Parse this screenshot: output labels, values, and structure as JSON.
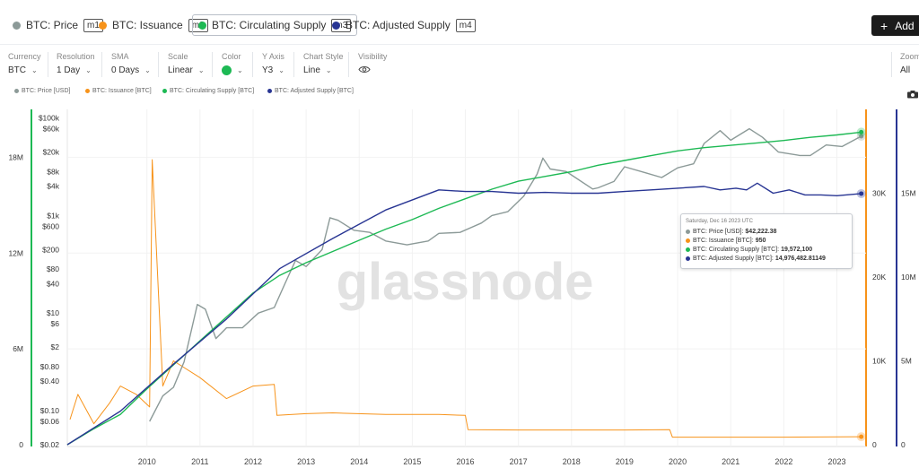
{
  "metrics": [
    {
      "name": "BTC: Price",
      "tag": "m1",
      "color": "#8c9a98"
    },
    {
      "name": "BTC: Issuance",
      "tag": "m2",
      "color": "#f7931a"
    },
    {
      "name": "BTC: Circulating Supply",
      "tag": "m3",
      "color": "#1db954"
    },
    {
      "name": "BTC: Adjusted Supply",
      "tag": "m4",
      "color": "#283593"
    }
  ],
  "add_label": "Add",
  "controls": {
    "currency": {
      "label": "Currency",
      "value": "BTC"
    },
    "resolution": {
      "label": "Resolution",
      "value": "1 Day"
    },
    "sma": {
      "label": "SMA",
      "value": "0 Days"
    },
    "scale": {
      "label": "Scale",
      "value": "Linear"
    },
    "color": {
      "label": "Color",
      "value": "#1db954"
    },
    "yaxis": {
      "label": "Y Axis",
      "value": "Y3"
    },
    "chart_style": {
      "label": "Chart Style",
      "value": "Line"
    },
    "visibility": {
      "label": "Visibility"
    },
    "zoom": {
      "label": "Zoom",
      "value": "All"
    }
  },
  "legend": [
    {
      "name": "BTC: Price [USD]",
      "color": "#8c9a98"
    },
    {
      "name": "BTC: Issuance [BTC]",
      "color": "#f7931a"
    },
    {
      "name": "BTC: Circulating Supply [BTC]",
      "color": "#1db954"
    },
    {
      "name": "BTC: Adjusted Supply [BTC]",
      "color": "#283593"
    }
  ],
  "watermark": "glassnode",
  "tooltip": {
    "date": "Saturday, Dec 16 2023 UTC",
    "rows": [
      {
        "label": "BTC: Price [USD]:",
        "value": "$42,222.38",
        "color": "#8c9a98"
      },
      {
        "label": "BTC: Issuance [BTC]:",
        "value": "950",
        "color": "#f7931a"
      },
      {
        "label": "BTC: Circulating Supply [BTC]:",
        "value": "19,572,100",
        "color": "#1db954"
      },
      {
        "label": "BTC: Adjusted Supply [BTC]:",
        "value": "14,976,482.81149",
        "color": "#283593"
      }
    ]
  },
  "chart_data": {
    "type": "line",
    "x_ticks": [
      "2010",
      "2011",
      "2012",
      "2013",
      "2014",
      "2015",
      "2016",
      "2017",
      "2018",
      "2019",
      "2020",
      "2021",
      "2022",
      "2023"
    ],
    "x_range": [
      2009.0,
      2024.05
    ],
    "axes": {
      "supply_left": {
        "ticks": [
          "0",
          "6M",
          "12M",
          "18M"
        ],
        "range": [
          0,
          21000000
        ],
        "color": "#1db954"
      },
      "price_log": {
        "ticks": [
          "$0.02",
          "$0.06",
          "$0.10",
          "$0.40",
          "$0.80",
          "$2",
          "$6",
          "$10",
          "$40",
          "$80",
          "$200",
          "$600",
          "$1k",
          "$4k",
          "$8k",
          "$20k",
          "$60k",
          "$100k"
        ],
        "range": [
          0.02,
          150000
        ],
        "scale": "log"
      },
      "issuance_right": {
        "ticks": [
          "0",
          "10K",
          "20K",
          "30K"
        ],
        "range": [
          0,
          40000
        ],
        "color": "#f7931a"
      },
      "adjusted_right": {
        "ticks": [
          "0",
          "5M",
          "10M",
          "15M"
        ],
        "range": [
          0,
          20000000
        ],
        "color": "#283593"
      }
    },
    "series": [
      {
        "name": "BTC: Price [USD]",
        "axis": "price_log",
        "color": "#8c9a98",
        "x": [
          2010.55,
          2010.8,
          2011.0,
          2011.2,
          2011.45,
          2011.6,
          2011.8,
          2012.0,
          2012.3,
          2012.6,
          2012.9,
          2013.1,
          2013.3,
          2013.5,
          2013.8,
          2013.95,
          2014.1,
          2014.4,
          2014.7,
          2015.0,
          2015.4,
          2015.8,
          2016.0,
          2016.4,
          2016.8,
          2017.0,
          2017.3,
          2017.6,
          2017.85,
          2017.96,
          2018.1,
          2018.4,
          2018.9,
          2019.0,
          2019.3,
          2019.5,
          2019.9,
          2020.2,
          2020.5,
          2020.8,
          2021.0,
          2021.3,
          2021.5,
          2021.85,
          2022.1,
          2022.4,
          2022.8,
          2023.0,
          2023.3,
          2023.6,
          2023.96
        ],
        "y": [
          0.06,
          0.2,
          0.3,
          1.0,
          15,
          12,
          3,
          5,
          5,
          10,
          13,
          40,
          120,
          90,
          200,
          900,
          800,
          500,
          450,
          300,
          250,
          300,
          430,
          450,
          700,
          1000,
          1200,
          2500,
          7000,
          15000,
          9000,
          8000,
          3500,
          3700,
          5000,
          10000,
          7500,
          6000,
          9500,
          11500,
          30000,
          55000,
          35000,
          60000,
          40000,
          20000,
          17000,
          17000,
          28000,
          26000,
          42222.38
        ]
      },
      {
        "name": "BTC: Issuance [BTC]",
        "axis": "issuance_right",
        "color": "#f7931a",
        "x": [
          2009.05,
          2009.2,
          2009.5,
          2009.8,
          2010.0,
          2010.3,
          2010.55,
          2010.6,
          2010.8,
          2011.0,
          2011.5,
          2012.0,
          2012.5,
          2012.9,
          2012.95,
          2013.5,
          2014.0,
          2015.0,
          2016.0,
          2016.5,
          2016.55,
          2017.5,
          2018.5,
          2019.5,
          2020.35,
          2020.4,
          2021.5,
          2022.5,
          2023.96
        ],
        "y": [
          3000,
          6000,
          2500,
          5000,
          7000,
          6000,
          4500,
          34000,
          7000,
          10000,
          8000,
          5500,
          7000,
          7200,
          3500,
          3700,
          3800,
          3600,
          3600,
          3500,
          1800,
          1750,
          1750,
          1750,
          1800,
          900,
          900,
          900,
          950
        ]
      },
      {
        "name": "BTC: Circulating Supply [BTC]",
        "axis": "supply_left",
        "color": "#1db954",
        "x": [
          2009.0,
          2009.5,
          2010.0,
          2010.5,
          2011.0,
          2011.5,
          2012.0,
          2012.5,
          2013.0,
          2013.5,
          2014.0,
          2014.5,
          2015.0,
          2015.5,
          2016.0,
          2016.5,
          2017.0,
          2017.5,
          2018.0,
          2018.5,
          2019.0,
          2019.5,
          2020.0,
          2020.5,
          2021.0,
          2021.5,
          2022.0,
          2022.5,
          2023.0,
          2023.5,
          2023.96
        ],
        "y": [
          0,
          1000000,
          1900000,
          3500000,
          5000000,
          6500000,
          8000000,
          9500000,
          10600000,
          11400000,
          12100000,
          12800000,
          13500000,
          14100000,
          14800000,
          15400000,
          16000000,
          16500000,
          16800000,
          17100000,
          17500000,
          17800000,
          18100000,
          18400000,
          18600000,
          18750000,
          18900000,
          19050000,
          19250000,
          19400000,
          19572100
        ]
      },
      {
        "name": "BTC: Adjusted Supply [BTC]",
        "axis": "adjusted_right",
        "color": "#283593",
        "x": [
          2009.0,
          2010.0,
          2011.0,
          2012.0,
          2013.0,
          2014.0,
          2015.0,
          2016.0,
          2016.5,
          2017.0,
          2017.5,
          2018.0,
          2018.5,
          2019.0,
          2019.5,
          2020.0,
          2020.5,
          2021.0,
          2021.3,
          2021.6,
          2021.8,
          2022.0,
          2022.3,
          2022.6,
          2022.9,
          2023.2,
          2023.5,
          2023.96
        ],
        "y": [
          0,
          2000000,
          4800000,
          7500000,
          10500000,
          12300000,
          14000000,
          15200000,
          15100000,
          15100000,
          15000000,
          15050000,
          15000000,
          15000000,
          15100000,
          15200000,
          15300000,
          15400000,
          15200000,
          15300000,
          15200000,
          15600000,
          15000000,
          15200000,
          14900000,
          14900000,
          14850000,
          14976482.81149
        ]
      }
    ]
  }
}
